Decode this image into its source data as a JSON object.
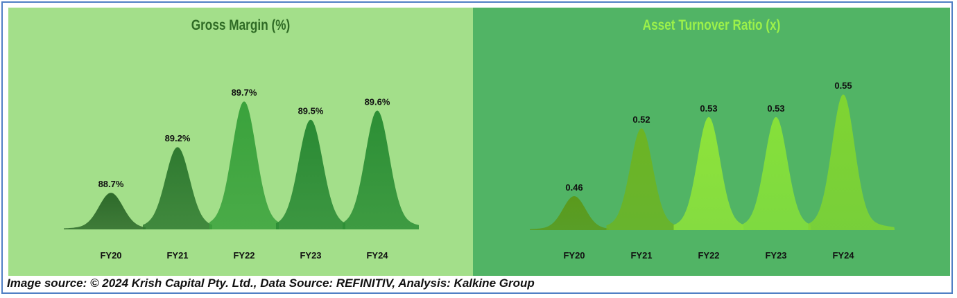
{
  "source_note": "Image source: © 2024 Krish Capital Pty. Ltd., Data Source: REFINITIV, Analysis: Kalkine Group",
  "chart_data": [
    {
      "type": "area",
      "title": "Gross Margin (%)",
      "categories": [
        "FY20",
        "FY21",
        "FY22",
        "FY23",
        "FY24"
      ],
      "values": [
        88.7,
        89.2,
        89.7,
        89.5,
        89.6
      ],
      "labels": [
        "88.7%",
        "89.2%",
        "89.7%",
        "89.5%",
        "89.6%"
      ],
      "ylim": [
        88.3,
        89.8
      ],
      "colors": {
        "background": "#a3df8a",
        "title": "#2f6b25",
        "peaks": [
          "#2d6a2a",
          "#2f7a30",
          "#3aa23c",
          "#2a8a34",
          "#2c8f35"
        ]
      }
    },
    {
      "type": "area",
      "title": "Asset Turnover Ratio (x)",
      "categories": [
        "FY20",
        "FY21",
        "FY22",
        "FY23",
        "FY24"
      ],
      "values": [
        0.46,
        0.52,
        0.53,
        0.53,
        0.55
      ],
      "labels": [
        "0.46",
        "0.52",
        "0.53",
        "0.53",
        "0.55"
      ],
      "ylim": [
        0.43,
        0.555
      ],
      "colors": {
        "background": "#51b465",
        "title": "#9cf14a",
        "peaks": [
          "#5a9a1c",
          "#6cb424",
          "#8ee33a",
          "#86e03a",
          "#7fd432"
        ]
      }
    }
  ]
}
